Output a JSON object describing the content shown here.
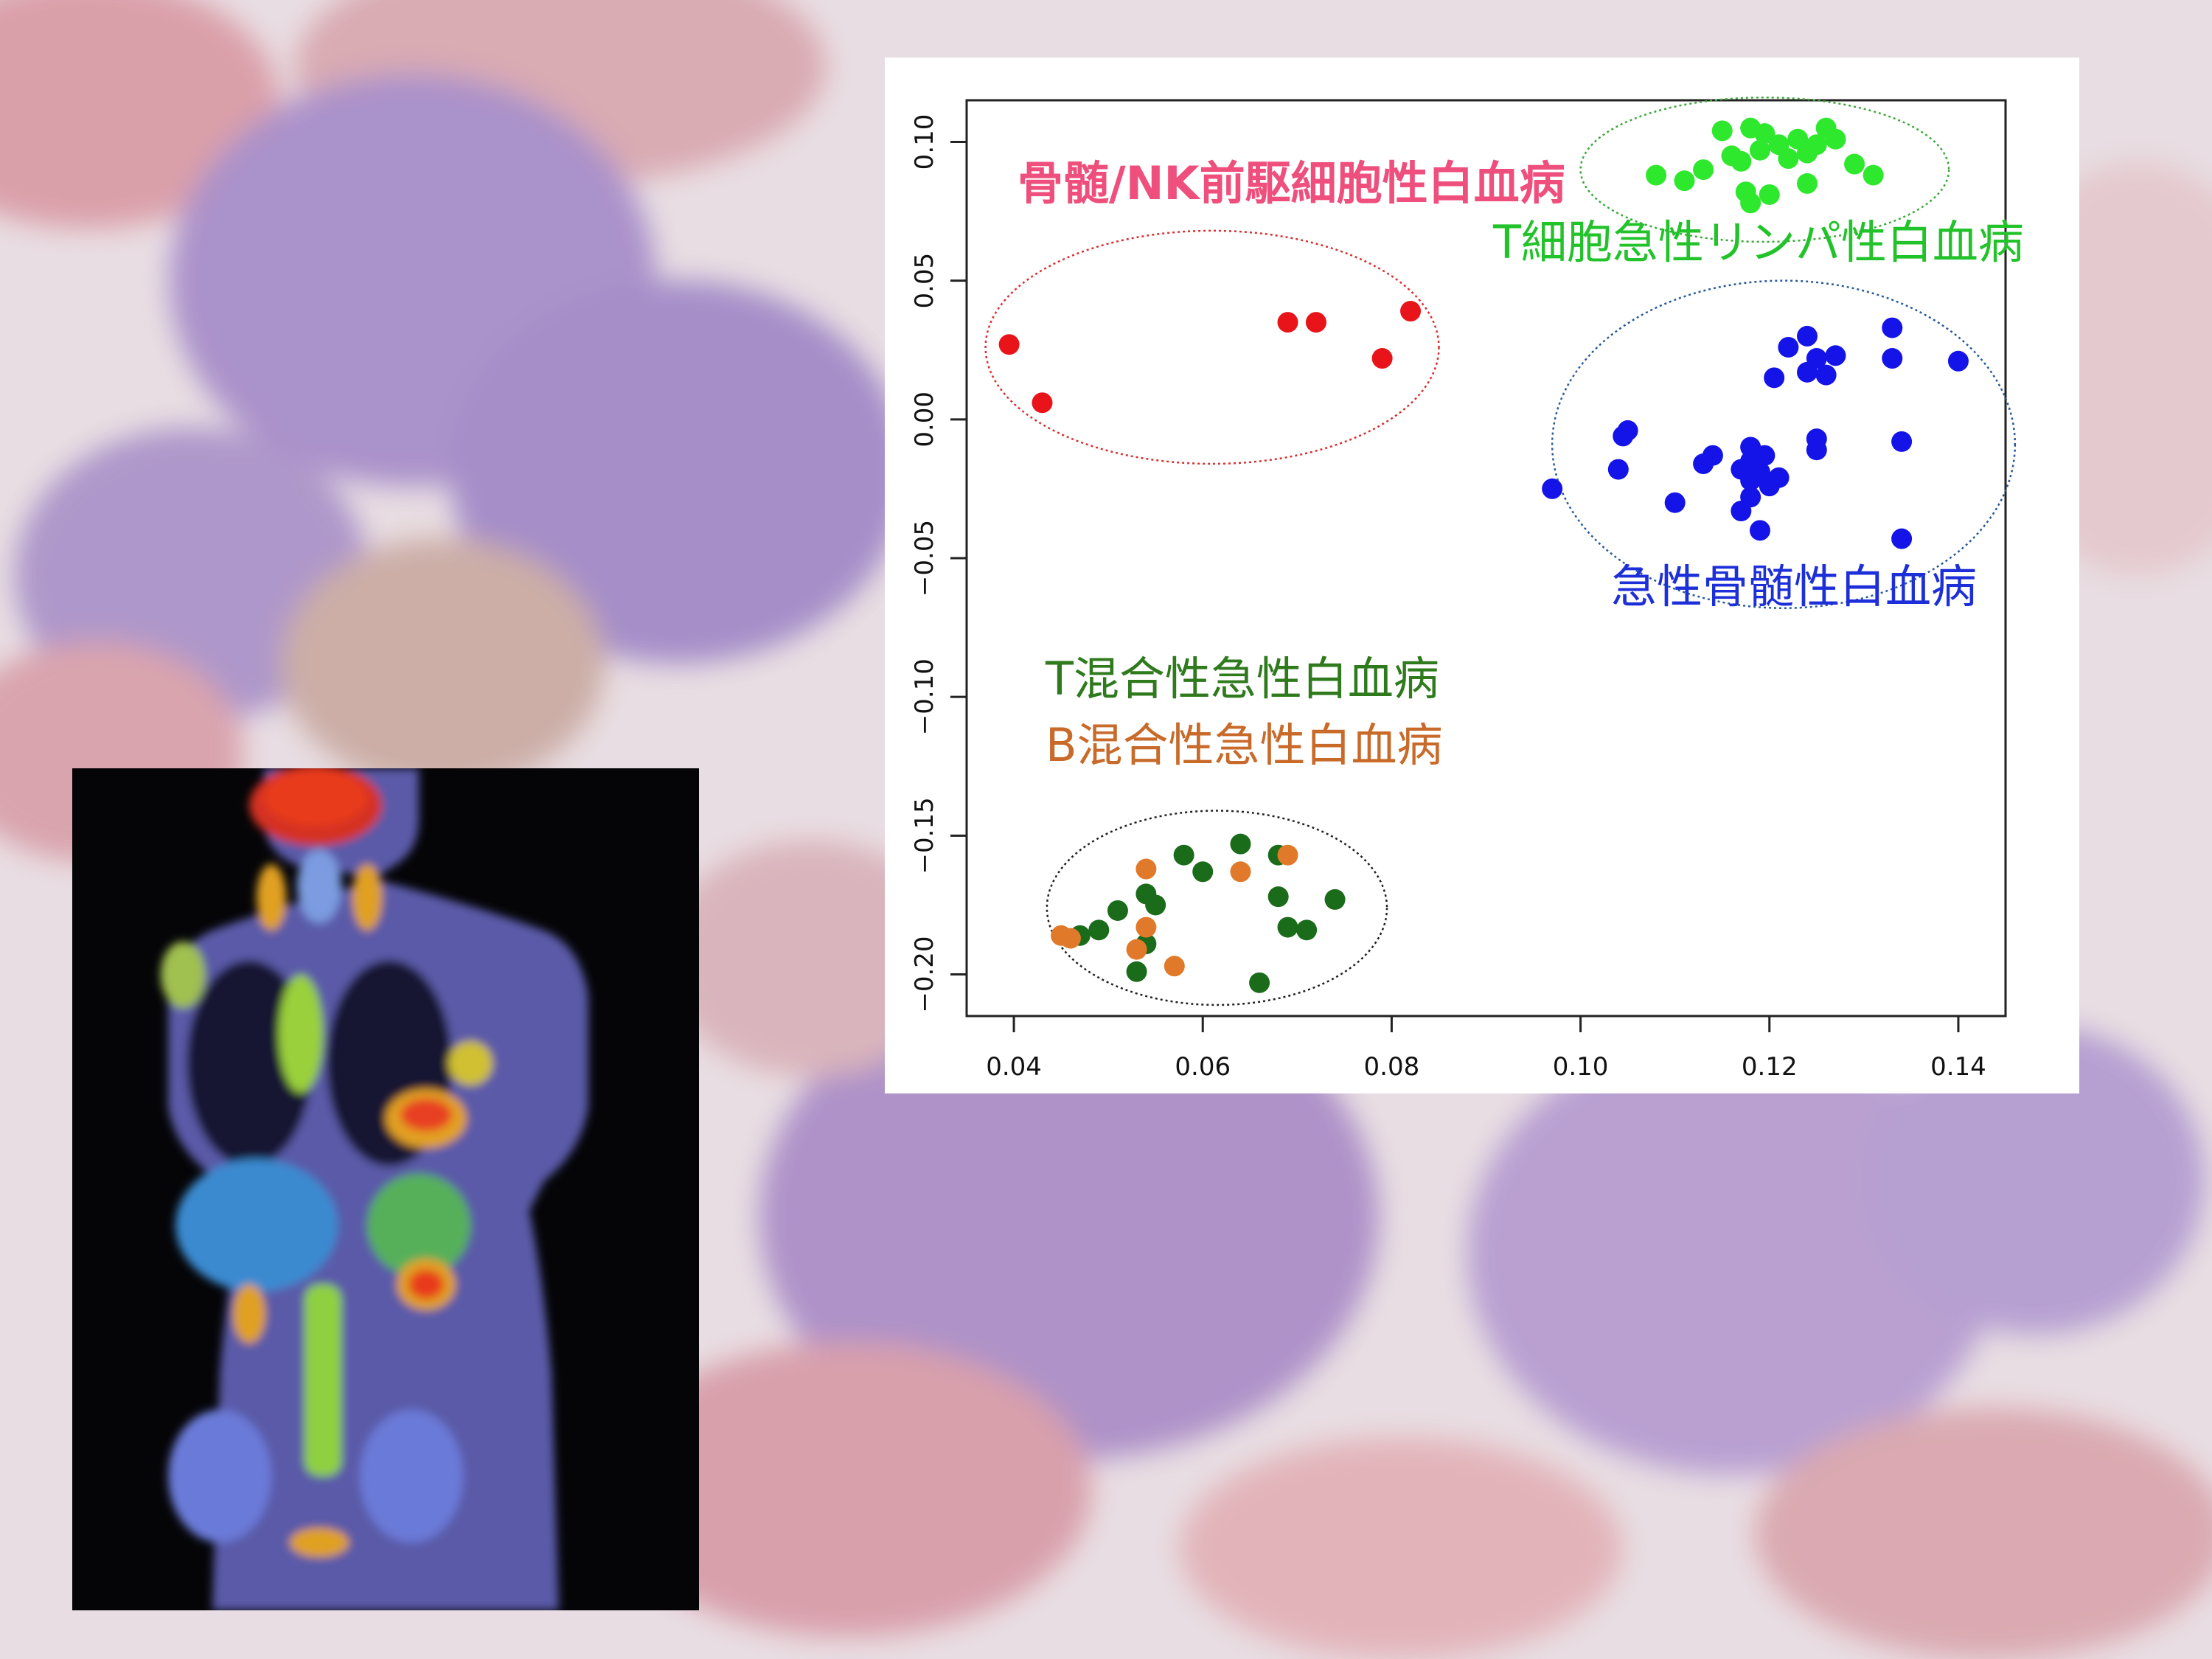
{
  "chart_data": {
    "type": "scatter",
    "title": "",
    "xlabel": "",
    "ylabel": "",
    "xlim": [
      0.035,
      0.145
    ],
    "ylim": [
      -0.215,
      0.115
    ],
    "xticks": [
      0.04,
      0.06,
      0.08,
      0.1,
      0.12,
      0.14
    ],
    "xtick_labels": [
      "0.04",
      "0.06",
      "0.08",
      "0.10",
      "0.12",
      "0.14"
    ],
    "yticks": [
      -0.2,
      -0.15,
      -0.1,
      -0.05,
      0.0,
      0.05,
      0.1
    ],
    "ytick_labels": [
      "−0.20",
      "−0.15",
      "−0.10",
      "−0.05",
      "0.00",
      "0.05",
      "0.10"
    ],
    "grid": false,
    "series": [
      {
        "name": "骨髄/NK前駆細胞性白血病",
        "color": "#e8141a",
        "points": [
          [
            0.0395,
            0.027
          ],
          [
            0.043,
            0.006
          ],
          [
            0.069,
            0.035
          ],
          [
            0.072,
            0.035
          ],
          [
            0.079,
            0.022
          ],
          [
            0.082,
            0.039
          ]
        ]
      },
      {
        "name": "T細胞急性リンパ性白血病",
        "color": "#2ee82e",
        "points": [
          [
            0.108,
            0.088
          ],
          [
            0.111,
            0.086
          ],
          [
            0.113,
            0.09
          ],
          [
            0.115,
            0.104
          ],
          [
            0.116,
            0.095
          ],
          [
            0.117,
            0.093
          ],
          [
            0.1175,
            0.082
          ],
          [
            0.118,
            0.105
          ],
          [
            0.118,
            0.078
          ],
          [
            0.119,
            0.097
          ],
          [
            0.1195,
            0.103
          ],
          [
            0.12,
            0.081
          ],
          [
            0.121,
            0.099
          ],
          [
            0.122,
            0.094
          ],
          [
            0.123,
            0.101
          ],
          [
            0.124,
            0.085
          ],
          [
            0.124,
            0.096
          ],
          [
            0.125,
            0.099
          ],
          [
            0.126,
            0.105
          ],
          [
            0.127,
            0.101
          ],
          [
            0.129,
            0.092
          ],
          [
            0.131,
            0.088
          ]
        ]
      },
      {
        "name": "急性骨髄性白血病",
        "color": "#1414e8",
        "points": [
          [
            0.097,
            -0.025
          ],
          [
            0.104,
            -0.018
          ],
          [
            0.1045,
            -0.006
          ],
          [
            0.105,
            -0.004
          ],
          [
            0.11,
            -0.03
          ],
          [
            0.113,
            -0.016
          ],
          [
            0.114,
            -0.013
          ],
          [
            0.117,
            -0.033
          ],
          [
            0.117,
            -0.018
          ],
          [
            0.118,
            -0.01
          ],
          [
            0.118,
            -0.015
          ],
          [
            0.118,
            -0.022
          ],
          [
            0.118,
            -0.028
          ],
          [
            0.119,
            -0.04
          ],
          [
            0.119,
            -0.019
          ],
          [
            0.1195,
            -0.013
          ],
          [
            0.12,
            -0.024
          ],
          [
            0.1205,
            0.015
          ],
          [
            0.121,
            -0.021
          ],
          [
            0.122,
            0.026
          ],
          [
            0.124,
            0.03
          ],
          [
            0.124,
            0.017
          ],
          [
            0.125,
            -0.011
          ],
          [
            0.125,
            -0.007
          ],
          [
            0.125,
            0.022
          ],
          [
            0.126,
            0.016
          ],
          [
            0.127,
            0.023
          ],
          [
            0.133,
            0.033
          ],
          [
            0.133,
            0.022
          ],
          [
            0.134,
            -0.008
          ],
          [
            0.134,
            -0.043
          ],
          [
            0.14,
            0.021
          ]
        ]
      },
      {
        "name": "T混合性急性白血病",
        "color": "#1a6b1a",
        "points": [
          [
            0.047,
            -0.186
          ],
          [
            0.049,
            -0.184
          ],
          [
            0.051,
            -0.177
          ],
          [
            0.053,
            -0.199
          ],
          [
            0.054,
            -0.171
          ],
          [
            0.054,
            -0.189
          ],
          [
            0.055,
            -0.175
          ],
          [
            0.058,
            -0.157
          ],
          [
            0.06,
            -0.163
          ],
          [
            0.064,
            -0.153
          ],
          [
            0.066,
            -0.203
          ],
          [
            0.068,
            -0.172
          ],
          [
            0.069,
            -0.183
          ],
          [
            0.071,
            -0.184
          ],
          [
            0.074,
            -0.173
          ],
          [
            0.068,
            -0.157
          ]
        ]
      },
      {
        "name": "B混合性急性白血病",
        "color": "#e07a2a",
        "points": [
          [
            0.045,
            -0.186
          ],
          [
            0.046,
            -0.187
          ],
          [
            0.053,
            -0.191
          ],
          [
            0.054,
            -0.162
          ],
          [
            0.054,
            -0.183
          ],
          [
            0.057,
            -0.197
          ],
          [
            0.064,
            -0.163
          ],
          [
            0.069,
            -0.157
          ]
        ]
      }
    ],
    "ellipses": [
      {
        "name": "骨髄/NK前駆細胞性白血病",
        "color": "#d83030",
        "cx": 0.061,
        "cy": 0.026,
        "rx": 0.024,
        "ry": 0.042
      },
      {
        "name": "T細胞急性リンパ性白血病",
        "color": "#3aa83a",
        "cx": 0.1195,
        "cy": 0.09,
        "rx": 0.0195,
        "ry": 0.026
      },
      {
        "name": "急性骨髄性白血病",
        "color": "#2a5a9a",
        "cx": 0.1215,
        "cy": -0.009,
        "rx": 0.0245,
        "ry": 0.059
      },
      {
        "name": "T混合性急性白血病",
        "color": "#222222",
        "cx": 0.0615,
        "cy": -0.176,
        "rx": 0.018,
        "ry": 0.035
      }
    ]
  },
  "labels": {
    "nk": "骨髄/NK前駆細胞性白血病",
    "tall": "T細胞急性リンパ性白血病",
    "aml": "急性骨髄性白血病",
    "tmix": "T混合性急性白血病",
    "bmix": "B混合性急性白血病"
  }
}
